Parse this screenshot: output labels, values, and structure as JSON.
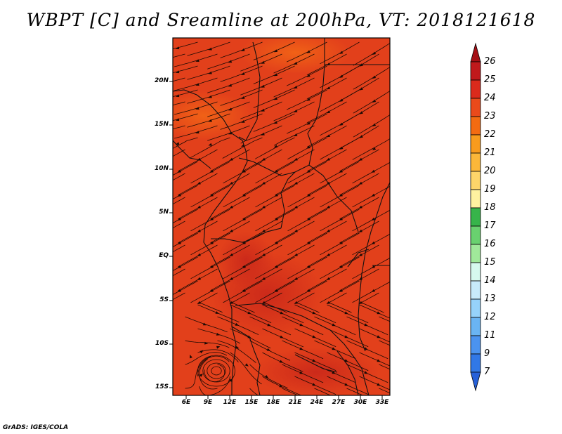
{
  "title": "WBPT [C] and Sreamline at 200hPa, VT: 2018121618",
  "credit": "GrADS: IGES/COLA",
  "map": {
    "lat_labels": [
      "20N",
      "15N",
      "10N",
      "5N",
      "EQ",
      "5S",
      "10S",
      "15S"
    ],
    "lon_labels": [
      "6E",
      "9E",
      "12E",
      "15E",
      "18E",
      "21E",
      "24E",
      "27E",
      "30E",
      "33E"
    ],
    "fill_color": "#e2401b"
  },
  "colorbar": {
    "levels": [
      "26",
      "25",
      "24",
      "23",
      "22",
      "21",
      "20",
      "19",
      "18",
      "17",
      "16",
      "15",
      "14",
      "13",
      "12",
      "11",
      "9",
      "7"
    ],
    "colors": [
      "#a50f15",
      "#c0191c",
      "#db2a1c",
      "#ea4a1b",
      "#f36b12",
      "#f89b1d",
      "#fbb739",
      "#fdd56a",
      "#fef2a0",
      "#37b44a",
      "#69d16f",
      "#a0e89a",
      "#d6f9ee",
      "#c8ebfa",
      "#96d2fa",
      "#6ab4f3",
      "#4b93ef",
      "#3178e6",
      "#2660d8"
    ]
  }
}
